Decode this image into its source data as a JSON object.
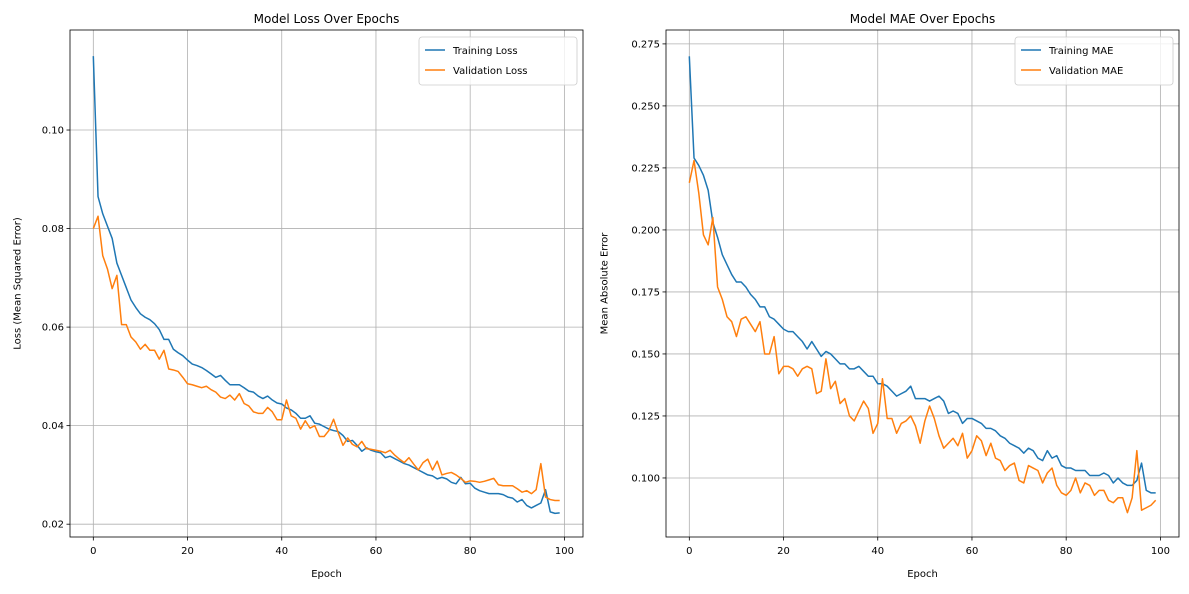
{
  "chart_data": [
    {
      "type": "line",
      "title": "Model Loss Over Epochs",
      "xlabel": "Epoch",
      "ylabel": "Loss (Mean Squared Error)",
      "xlim": [
        -4.95,
        103.95
      ],
      "ylim": [
        0.0174,
        0.1203
      ],
      "xticks": [
        0,
        20,
        40,
        60,
        80,
        100
      ],
      "yticks": [
        0.02,
        0.04,
        0.06,
        0.08,
        0.1
      ],
      "ytick_labels": [
        "0.02",
        "0.04",
        "0.06",
        "0.08",
        "0.10"
      ],
      "grid": true,
      "legend": "top-right",
      "series": [
        {
          "name": "Training Loss",
          "color": "#1f77b4",
          "values": [
            0.115,
            0.0865,
            0.083,
            0.0805,
            0.078,
            0.073,
            0.0705,
            0.068,
            0.0655,
            0.064,
            0.0627,
            0.062,
            0.0615,
            0.0607,
            0.0595,
            0.0575,
            0.0575,
            0.0555,
            0.0548,
            0.0542,
            0.0533,
            0.0525,
            0.0522,
            0.0518,
            0.0512,
            0.0505,
            0.0498,
            0.0502,
            0.0492,
            0.0483,
            0.0483,
            0.0483,
            0.0477,
            0.047,
            0.0468,
            0.046,
            0.0455,
            0.046,
            0.0452,
            0.0446,
            0.0444,
            0.0436,
            0.0432,
            0.0425,
            0.0415,
            0.0415,
            0.042,
            0.0405,
            0.0403,
            0.0398,
            0.0393,
            0.039,
            0.0388,
            0.038,
            0.0368,
            0.037,
            0.036,
            0.0348,
            0.0355,
            0.035,
            0.0347,
            0.0345,
            0.0335,
            0.0338,
            0.0333,
            0.0328,
            0.0323,
            0.032,
            0.0315,
            0.031,
            0.0305,
            0.03,
            0.0298,
            0.0292,
            0.0295,
            0.0292,
            0.0285,
            0.0282,
            0.0295,
            0.0282,
            0.0283,
            0.0273,
            0.0268,
            0.0265,
            0.0262,
            0.0262,
            0.0262,
            0.026,
            0.0255,
            0.0253,
            0.0245,
            0.025,
            0.0238,
            0.0233,
            0.0238,
            0.0243,
            0.027,
            0.0225,
            0.0222,
            0.0223
          ]
        },
        {
          "name": "Validation Loss",
          "color": "#ff7f0e",
          "values": [
            0.08,
            0.0825,
            0.0745,
            0.0718,
            0.0678,
            0.0705,
            0.0605,
            0.0605,
            0.058,
            0.057,
            0.0555,
            0.0565,
            0.0553,
            0.0553,
            0.0535,
            0.0553,
            0.0515,
            0.0513,
            0.051,
            0.0498,
            0.0485,
            0.0483,
            0.048,
            0.0477,
            0.048,
            0.0473,
            0.0468,
            0.0458,
            0.0455,
            0.0462,
            0.0452,
            0.0465,
            0.0445,
            0.044,
            0.0428,
            0.0425,
            0.0425,
            0.0437,
            0.0428,
            0.0412,
            0.0412,
            0.0452,
            0.042,
            0.0415,
            0.0393,
            0.041,
            0.0395,
            0.04,
            0.0378,
            0.0378,
            0.039,
            0.0413,
            0.0385,
            0.036,
            0.0375,
            0.0362,
            0.0357,
            0.0368,
            0.0353,
            0.0352,
            0.035,
            0.0348,
            0.0345,
            0.035,
            0.034,
            0.0332,
            0.0325,
            0.0335,
            0.0322,
            0.031,
            0.0325,
            0.0332,
            0.031,
            0.0328,
            0.03,
            0.0303,
            0.0305,
            0.03,
            0.0293,
            0.0285,
            0.0288,
            0.0287,
            0.0285,
            0.0287,
            0.029,
            0.0293,
            0.028,
            0.0278,
            0.0278,
            0.0278,
            0.0272,
            0.0265,
            0.0268,
            0.0262,
            0.027,
            0.0323,
            0.0255,
            0.025,
            0.0248,
            0.0248
          ]
        }
      ]
    },
    {
      "type": "line",
      "title": "Model MAE Over Epochs",
      "xlabel": "Epoch",
      "ylabel": "Mean Absolute Error",
      "xlim": [
        -4.95,
        103.95
      ],
      "ylim": [
        0.0762,
        0.2806
      ],
      "xticks": [
        0,
        20,
        40,
        60,
        80,
        100
      ],
      "yticks": [
        0.1,
        0.125,
        0.15,
        0.175,
        0.2,
        0.225,
        0.25,
        0.275
      ],
      "ytick_labels": [
        "0.100",
        "0.125",
        "0.150",
        "0.175",
        "0.200",
        "0.225",
        "0.250",
        "0.275"
      ],
      "grid": true,
      "legend": "top-right",
      "series": [
        {
          "name": "Training MAE",
          "color": "#1f77b4",
          "values": [
            0.27,
            0.229,
            0.226,
            0.222,
            0.216,
            0.203,
            0.197,
            0.19,
            0.186,
            0.182,
            0.179,
            0.179,
            0.177,
            0.174,
            0.172,
            0.169,
            0.169,
            0.165,
            0.164,
            0.162,
            0.16,
            0.159,
            0.159,
            0.157,
            0.155,
            0.152,
            0.155,
            0.152,
            0.149,
            0.151,
            0.15,
            0.148,
            0.146,
            0.146,
            0.144,
            0.144,
            0.145,
            0.143,
            0.141,
            0.141,
            0.138,
            0.138,
            0.137,
            0.135,
            0.133,
            0.134,
            0.135,
            0.137,
            0.132,
            0.132,
            0.132,
            0.131,
            0.132,
            0.133,
            0.131,
            0.126,
            0.127,
            0.126,
            0.122,
            0.124,
            0.124,
            0.123,
            0.122,
            0.12,
            0.12,
            0.119,
            0.117,
            0.116,
            0.114,
            0.113,
            0.112,
            0.11,
            0.112,
            0.111,
            0.108,
            0.107,
            0.111,
            0.108,
            0.109,
            0.105,
            0.104,
            0.104,
            0.103,
            0.103,
            0.103,
            0.101,
            0.101,
            0.101,
            0.102,
            0.101,
            0.098,
            0.1,
            0.098,
            0.097,
            0.097,
            0.099,
            0.106,
            0.095,
            0.094,
            0.094
          ]
        },
        {
          "name": "Validation MAE",
          "color": "#ff7f0e",
          "values": [
            0.219,
            0.228,
            0.215,
            0.198,
            0.194,
            0.205,
            0.177,
            0.172,
            0.165,
            0.163,
            0.157,
            0.164,
            0.165,
            0.162,
            0.159,
            0.163,
            0.15,
            0.15,
            0.157,
            0.142,
            0.145,
            0.145,
            0.144,
            0.141,
            0.144,
            0.145,
            0.144,
            0.134,
            0.135,
            0.148,
            0.136,
            0.139,
            0.13,
            0.132,
            0.125,
            0.123,
            0.127,
            0.131,
            0.128,
            0.118,
            0.122,
            0.14,
            0.124,
            0.124,
            0.118,
            0.122,
            0.123,
            0.125,
            0.121,
            0.114,
            0.123,
            0.129,
            0.124,
            0.117,
            0.112,
            0.114,
            0.116,
            0.113,
            0.118,
            0.108,
            0.111,
            0.117,
            0.115,
            0.109,
            0.114,
            0.108,
            0.107,
            0.103,
            0.105,
            0.106,
            0.099,
            0.098,
            0.105,
            0.104,
            0.103,
            0.098,
            0.102,
            0.104,
            0.097,
            0.094,
            0.093,
            0.095,
            0.1,
            0.094,
            0.098,
            0.097,
            0.093,
            0.095,
            0.095,
            0.091,
            0.09,
            0.092,
            0.092,
            0.086,
            0.092,
            0.111,
            0.087,
            0.088,
            0.089,
            0.091
          ]
        }
      ]
    }
  ]
}
